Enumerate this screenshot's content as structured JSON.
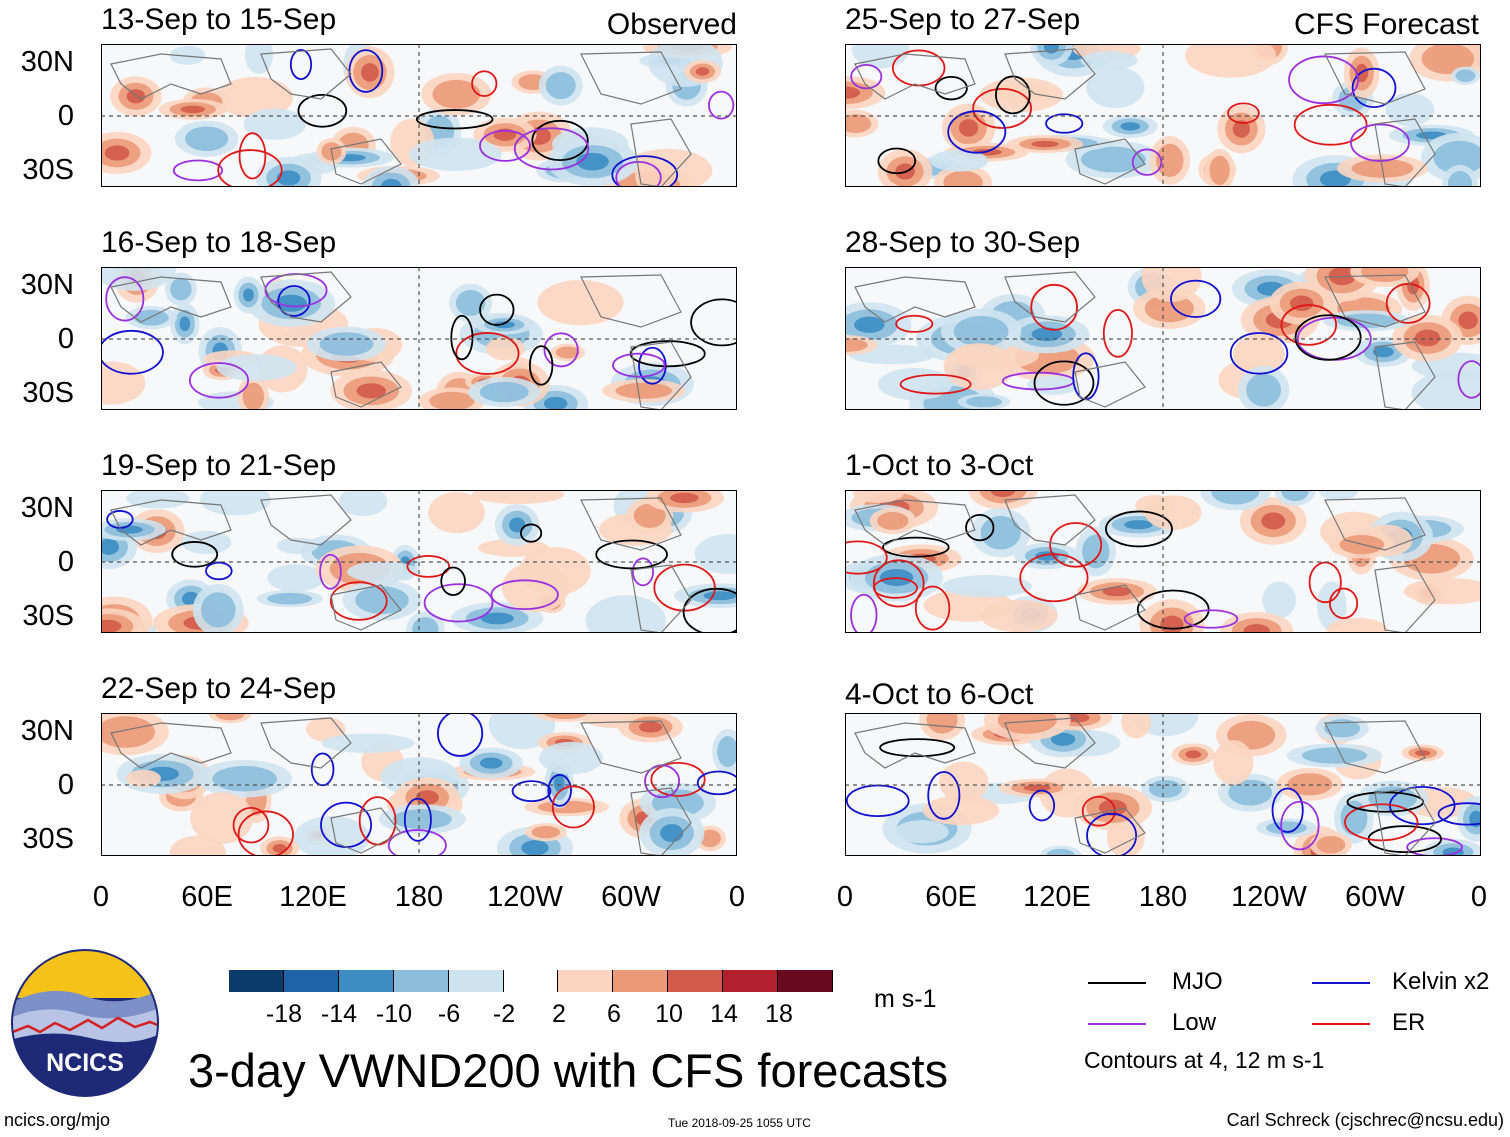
{
  "panel_tags": {
    "observed": "Observed",
    "forecast": "CFS Forecast"
  },
  "panels": {
    "left": [
      {
        "title": "13-Sep to 15-Sep"
      },
      {
        "title": "16-Sep to 18-Sep"
      },
      {
        "title": "19-Sep to 21-Sep"
      },
      {
        "title": "22-Sep to 24-Sep"
      }
    ],
    "right": [
      {
        "title": "25-Sep to 27-Sep"
      },
      {
        "title": "28-Sep to 30-Sep"
      },
      {
        "title": "1-Oct to 3-Oct"
      },
      {
        "title": "4-Oct to 6-Oct"
      }
    ]
  },
  "axes": {
    "lat_labels": [
      "30N",
      "0",
      "30S"
    ],
    "lon_labels": [
      "0",
      "60E",
      "120E",
      "180",
      "120W",
      "60W",
      "0"
    ]
  },
  "colorbar": {
    "labels": [
      "-18",
      "-14",
      "-10",
      "-6",
      "-2",
      "2",
      "6",
      "10",
      "14",
      "18"
    ],
    "units": "m s-1",
    "colors": [
      "#0b3b6b",
      "#1f64a8",
      "#3d8dc4",
      "#8cbedc",
      "#cfe3ef",
      "#ffffff",
      "#fbd5c0",
      "#eb9a78",
      "#d25a4a",
      "#b21f2d",
      "#6a0a1e"
    ]
  },
  "legend": {
    "mjo": {
      "label": "MJO",
      "color": "#000000"
    },
    "kelvin": {
      "label": "Kelvin x2",
      "color": "#1010d0"
    },
    "low": {
      "label": "Low",
      "color": "#9a30e0"
    },
    "er": {
      "label": "ER",
      "color": "#e01818"
    },
    "note": "Contours at 4, 12 m s-1"
  },
  "logo": {
    "text": "NCICS"
  },
  "main_title": "3-day VWND200 with CFS forecasts",
  "footer": {
    "left": "ncics.org/mjo",
    "center": "Tue 2018-09-25 1055 UTC",
    "right": "Carl Schreck (cjschrec@ncsu.edu)"
  }
}
